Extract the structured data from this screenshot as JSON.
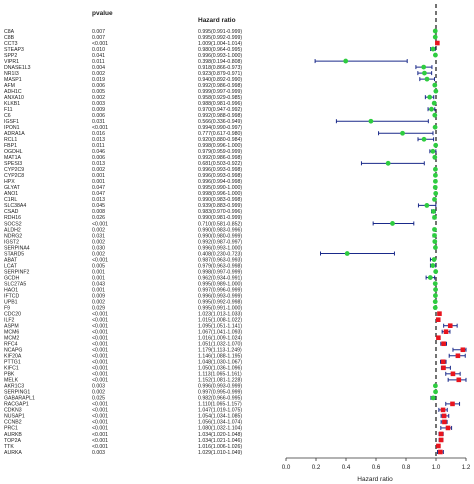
{
  "chart_data": {
    "type": "forest",
    "columns": {
      "pvalue": "pvalue",
      "hr": "Hazard ratio"
    },
    "xlabel": "Hazard ratio",
    "xlim": [
      0.0,
      1.2
    ],
    "xticks": [
      0.0,
      0.2,
      0.4,
      0.6,
      0.8,
      1.0,
      1.2
    ],
    "reference_line": 1.0,
    "colors": {
      "protective": "#2ecc40",
      "risk": "#e8141e",
      "ci": "#1a2a8a",
      "reference": "#000000"
    },
    "rows": [
      {
        "gene": "C8A",
        "p": "0.007",
        "hr": 0.995,
        "lo": 0.991,
        "hi": 0.999,
        "hrtext": "0.995(0.991-0.999)"
      },
      {
        "gene": "C8B",
        "p": "0.007",
        "hr": 0.995,
        "lo": 0.992,
        "hi": 0.999,
        "hrtext": "0.995(0.992-0.999)"
      },
      {
        "gene": "CCT3",
        "p": "<0.001",
        "hr": 1.009,
        "lo": 1.004,
        "hi": 1.014,
        "hrtext": "1.009(1.004-1.014)"
      },
      {
        "gene": "STEAP3",
        "p": "0.010",
        "hr": 0.98,
        "lo": 0.964,
        "hi": 0.995,
        "hrtext": "0.980(0.964-0.995)"
      },
      {
        "gene": "SPP2",
        "p": "0.041",
        "hr": 0.996,
        "lo": 0.993,
        "hi": 1.0,
        "hrtext": "0.996(0.993-1.000)"
      },
      {
        "gene": "VIPR1",
        "p": "0.011",
        "hr": 0.398,
        "lo": 0.194,
        "hi": 0.808,
        "hrtext": "0.398(0.194-0.808)"
      },
      {
        "gene": "DNASE1L3",
        "p": "0.004",
        "hr": 0.918,
        "lo": 0.866,
        "hi": 0.973,
        "hrtext": "0.918(0.866-0.973)"
      },
      {
        "gene": "NR1I3",
        "p": "0.002",
        "hr": 0.923,
        "lo": 0.879,
        "hi": 0.971,
        "hrtext": "0.923(0.879-0.971)"
      },
      {
        "gene": "MASP1",
        "p": "0.019",
        "hr": 0.94,
        "lo": 0.892,
        "hi": 0.99,
        "hrtext": "0.940(0.892-0.990)"
      },
      {
        "gene": "AFM",
        "p": "0.006",
        "hr": 0.992,
        "lo": 0.986,
        "hi": 0.998,
        "hrtext": "0.992(0.986-0.998)"
      },
      {
        "gene": "ADH1C",
        "p": "0.005",
        "hr": 0.999,
        "lo": 0.997,
        "hi": 0.999,
        "hrtext": "0.999(0.997-0.999)"
      },
      {
        "gene": "ANXA10",
        "p": "0.002",
        "hr": 0.958,
        "lo": 0.929,
        "hi": 0.985,
        "hrtext": "0.958(0.929-0.985)"
      },
      {
        "gene": "KLKB1",
        "p": "0.003",
        "hr": 0.988,
        "lo": 0.981,
        "hi": 0.996,
        "hrtext": "0.988(0.981-0.996)"
      },
      {
        "gene": "F11",
        "p": "0.009",
        "hr": 0.97,
        "lo": 0.947,
        "hi": 0.992,
        "hrtext": "0.970(0.947-0.992)"
      },
      {
        "gene": "C6",
        "p": "0.006",
        "hr": 0.992,
        "lo": 0.988,
        "hi": 0.998,
        "hrtext": "0.992(0.988-0.998)"
      },
      {
        "gene": "IGSF1",
        "p": "0.031",
        "hr": 0.566,
        "lo": 0.336,
        "hi": 0.949,
        "hrtext": "0.566(0.336-0.949)"
      },
      {
        "gene": "IPON1",
        "p": "<0.001",
        "hr": 0.994,
        "lo": 0.99,
        "hi": 0.997,
        "hrtext": "0.994(0.990-0.997)"
      },
      {
        "gene": "ADRA1A",
        "p": "0.016",
        "hr": 0.777,
        "lo": 0.617,
        "hi": 0.98,
        "hrtext": "0.777(0.617-0.980)"
      },
      {
        "gene": "RCL1",
        "p": "0.013",
        "hr": 0.92,
        "lo": 0.88,
        "hi": 0.984,
        "hrtext": "0.920(0.880-0.984)"
      },
      {
        "gene": "FBP1",
        "p": "0.011",
        "hr": 0.998,
        "lo": 0.996,
        "hi": 1.0,
        "hrtext": "0.998(0.996-1.000)"
      },
      {
        "gene": "OGDHL",
        "p": "0.046",
        "hr": 0.979,
        "lo": 0.959,
        "hi": 0.999,
        "hrtext": "0.979(0.959-0.999)"
      },
      {
        "gene": "MAT1A",
        "p": "0.006",
        "hr": 0.992,
        "lo": 0.986,
        "hi": 0.998,
        "hrtext": "0.992(0.986-0.998)"
      },
      {
        "gene": "SPESI3",
        "p": "0.013",
        "hr": 0.681,
        "lo": 0.503,
        "hi": 0.922,
        "hrtext": "0.681(0.503-0.922)"
      },
      {
        "gene": "CYP2C9",
        "p": "0.002",
        "hr": 0.996,
        "lo": 0.993,
        "hi": 0.998,
        "hrtext": "0.996(0.993-0.998)"
      },
      {
        "gene": "CYP2C8",
        "p": "0.001",
        "hr": 0.996,
        "lo": 0.993,
        "hi": 0.998,
        "hrtext": "0.996(0.993-0.998)"
      },
      {
        "gene": "HPX",
        "p": "0.001",
        "hr": 0.996,
        "lo": 0.994,
        "hi": 0.998,
        "hrtext": "0.996(0.994-0.998)"
      },
      {
        "gene": "GLYAT",
        "p": "0.047",
        "hr": 0.995,
        "lo": 0.99,
        "hi": 1.0,
        "hrtext": "0.995(0.990-1.000)"
      },
      {
        "gene": "ANO1",
        "p": "0.047",
        "hr": 0.998,
        "lo": 0.996,
        "hi": 1.0,
        "hrtext": "0.998(0.996-1.000)"
      },
      {
        "gene": "C1RL",
        "p": "0.013",
        "hr": 0.99,
        "lo": 0.983,
        "hi": 0.998,
        "hrtext": "0.990(0.983-0.998)"
      },
      {
        "gene": "SLC38A4",
        "p": "0.045",
        "hr": 0.939,
        "lo": 0.883,
        "hi": 0.999,
        "hrtext": "0.939(0.883-0.999)"
      },
      {
        "gene": "CSAD",
        "p": "0.008",
        "hr": 0.983,
        "lo": 0.97,
        "hi": 0.996,
        "hrtext": "0.983(0.970-0.996)"
      },
      {
        "gene": "RDH16",
        "p": "0.026",
        "hr": 0.99,
        "lo": 0.981,
        "hi": 0.999,
        "hrtext": "0.990(0.981-0.999)"
      },
      {
        "gene": "SOCS2",
        "p": "<0.001",
        "hr": 0.71,
        "lo": 0.581,
        "hi": 0.852,
        "hrtext": "0.710(0.581-0.852)"
      },
      {
        "gene": "ALDH2",
        "p": "0.002",
        "hr": 0.99,
        "lo": 0.983,
        "hi": 0.996,
        "hrtext": "0.990(0.983-0.996)"
      },
      {
        "gene": "NDRG2",
        "p": "0.031",
        "hr": 0.99,
        "lo": 0.98,
        "hi": 0.999,
        "hrtext": "0.990(0.980-0.999)"
      },
      {
        "gene": "IGST2",
        "p": "0.002",
        "hr": 0.992,
        "lo": 0.987,
        "hi": 0.997,
        "hrtext": "0.992(0.987-0.997)"
      },
      {
        "gene": "SERPINA4",
        "p": "0.030",
        "hr": 0.996,
        "lo": 0.993,
        "hi": 1.0,
        "hrtext": "0.996(0.993-1.000)"
      },
      {
        "gene": "STARD5",
        "p": "0.002",
        "hr": 0.408,
        "lo": 0.23,
        "hi": 0.723,
        "hrtext": "0.408(0.230-0.723)"
      },
      {
        "gene": "ABAT",
        "p": "<0.001",
        "hr": 0.987,
        "lo": 0.963,
        "hi": 0.993,
        "hrtext": "0.987(0.963-0.993)"
      },
      {
        "gene": "LCAT",
        "p": "0.005",
        "hr": 0.979,
        "lo": 0.963,
        "hi": 0.998,
        "hrtext": "0.979(0.963-0.998)"
      },
      {
        "gene": "SERPINF2",
        "p": "0.001",
        "hr": 0.998,
        "lo": 0.997,
        "hi": 0.999,
        "hrtext": "0.998(0.997-0.999)"
      },
      {
        "gene": "GCDH",
        "p": "0.001",
        "hr": 0.962,
        "lo": 0.934,
        "hi": 0.991,
        "hrtext": "0.962(0.934-0.991)"
      },
      {
        "gene": "SLC27A5",
        "p": "0.043",
        "hr": 0.995,
        "lo": 0.989,
        "hi": 1.0,
        "hrtext": "0.995(0.989-1.000)"
      },
      {
        "gene": "HAO1",
        "p": "0.001",
        "hr": 0.997,
        "lo": 0.996,
        "hi": 0.999,
        "hrtext": "0.997(0.996-0.999)"
      },
      {
        "gene": "IFTCD",
        "p": "0.009",
        "hr": 0.996,
        "lo": 0.993,
        "hi": 0.999,
        "hrtext": "0.996(0.993-0.999)"
      },
      {
        "gene": "UPB1",
        "p": "0.002",
        "hr": 0.995,
        "lo": 0.992,
        "hi": 0.998,
        "hrtext": "0.995(0.992-0.998)"
      },
      {
        "gene": "F9",
        "p": "0.029",
        "hr": 0.995,
        "lo": 0.991,
        "hi": 1.0,
        "hrtext": "0.995(0.991-1.000)"
      },
      {
        "gene": "CDC20",
        "p": "<0.001",
        "hr": 1.023,
        "lo": 1.013,
        "hi": 1.033,
        "hrtext": "1.023(1.013-1.033)"
      },
      {
        "gene": "ILF2",
        "p": "<0.001",
        "hr": 1.015,
        "lo": 1.008,
        "hi": 1.022,
        "hrtext": "1.015(1.008-1.022)"
      },
      {
        "gene": "ASPM",
        "p": "<0.001",
        "hr": 1.095,
        "lo": 1.051,
        "hi": 1.141,
        "hrtext": "1.095(1.051-1.141)"
      },
      {
        "gene": "MCM6",
        "p": "<0.001",
        "hr": 1.067,
        "lo": 1.041,
        "hi": 1.093,
        "hrtext": "1.067(1.041-1.093)"
      },
      {
        "gene": "MCM2",
        "p": "<0.001",
        "hr": 1.016,
        "lo": 1.009,
        "hi": 1.024,
        "hrtext": "1.016(1.009-1.024)"
      },
      {
        "gene": "RFC4",
        "p": "<0.001",
        "hr": 1.051,
        "lo": 1.032,
        "hi": 1.07,
        "hrtext": "1.051(1.032-1.070)"
      },
      {
        "gene": "NCAPG",
        "p": "<0.001",
        "hr": 1.179,
        "lo": 1.113,
        "hi": 1.249,
        "hrtext": "1.179(1.113-1.249)"
      },
      {
        "gene": "KIF20A",
        "p": "<0.001",
        "hr": 1.146,
        "lo": 1.088,
        "hi": 1.195,
        "hrtext": "1.146(1.088-1.195)"
      },
      {
        "gene": "PTTG1",
        "p": "<0.001",
        "hr": 1.048,
        "lo": 1.03,
        "hi": 1.067,
        "hrtext": "1.048(1.030-1.067)"
      },
      {
        "gene": "KIFC1",
        "p": "<0.001",
        "hr": 1.05,
        "lo": 1.036,
        "hi": 1.096,
        "hrtext": "1.050(1.036-1.096)"
      },
      {
        "gene": "PBK",
        "p": "<0.001",
        "hr": 1.113,
        "lo": 1.065,
        "hi": 1.161,
        "hrtext": "1.113(1.065-1.161)"
      },
      {
        "gene": "MELK",
        "p": "<0.001",
        "hr": 1.152,
        "lo": 1.081,
        "hi": 1.228,
        "hrtext": "1.152(1.081-1.228)"
      },
      {
        "gene": "AKR1C3",
        "p": "0.003",
        "hr": 0.996,
        "lo": 0.993,
        "hi": 0.999,
        "hrtext": "0.996(0.993-0.999)"
      },
      {
        "gene": "SERPING1",
        "p": "0.002",
        "hr": 0.997,
        "lo": 0.995,
        "hi": 0.999,
        "hrtext": "0.997(0.995-0.999)"
      },
      {
        "gene": "GABARAPL1",
        "p": "0.025",
        "hr": 0.982,
        "lo": 0.966,
        "hi": 0.995,
        "hrtext": "0.982(0.966-0.995)"
      },
      {
        "gene": "RACGAP1",
        "p": "<0.001",
        "hr": 1.11,
        "lo": 1.065,
        "hi": 1.157,
        "hrtext": "1.110(1.065-1.157)"
      },
      {
        "gene": "CDKN3",
        "p": "<0.001",
        "hr": 1.047,
        "lo": 1.019,
        "hi": 1.075,
        "hrtext": "1.047(1.019-1.075)"
      },
      {
        "gene": "NUSAP1",
        "p": "<0.001",
        "hr": 1.054,
        "lo": 1.034,
        "hi": 1.085,
        "hrtext": "1.054(1.034-1.085)"
      },
      {
        "gene": "CCNB2",
        "p": "<0.001",
        "hr": 1.056,
        "lo": 1.034,
        "hi": 1.074,
        "hrtext": "1.056(1.034-1.074)"
      },
      {
        "gene": "PRC1",
        "p": "<0.001",
        "hr": 1.08,
        "lo": 1.032,
        "hi": 1.104,
        "hrtext": "1.080(1.032-1.104)"
      },
      {
        "gene": "AURKB",
        "p": "<0.001",
        "hr": 1.034,
        "lo": 1.02,
        "hi": 1.048,
        "hrtext": "1.034(1.020-1.048)"
      },
      {
        "gene": "TOP2A",
        "p": "<0.001",
        "hr": 1.034,
        "lo": 1.021,
        "hi": 1.046,
        "hrtext": "1.034(1.021-1.046)"
      },
      {
        "gene": "TTK",
        "p": "<0.001",
        "hr": 1.016,
        "lo": 1.006,
        "hi": 1.026,
        "hrtext": "1.016(1.006-1.026)"
      },
      {
        "gene": "AURKA",
        "p": "0.003",
        "hr": 1.029,
        "lo": 1.01,
        "hi": 1.049,
        "hrtext": "1.029(1.010-1.049)"
      }
    ]
  }
}
